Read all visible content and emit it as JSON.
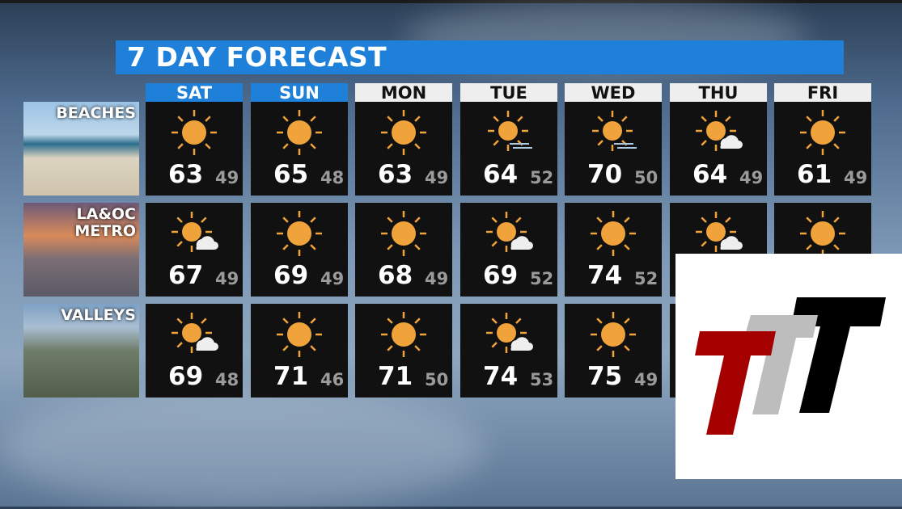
{
  "title": "7 DAY FORECAST",
  "colors": {
    "title_bar": "#1e80d8",
    "sun": "#f0a33a",
    "cell": "#111111"
  },
  "days": [
    {
      "label": "SAT",
      "current": true
    },
    {
      "label": "SUN",
      "current": true
    },
    {
      "label": "MON",
      "current": false
    },
    {
      "label": "TUE",
      "current": false
    },
    {
      "label": "WED",
      "current": false
    },
    {
      "label": "THU",
      "current": false
    },
    {
      "label": "FRI",
      "current": false
    }
  ],
  "regions": [
    {
      "label": "BEACHES",
      "forecast": [
        {
          "icon": "sunny",
          "hi": "63",
          "lo": "49"
        },
        {
          "icon": "sunny",
          "hi": "65",
          "lo": "48"
        },
        {
          "icon": "sunny",
          "hi": "63",
          "lo": "49"
        },
        {
          "icon": "sun-haze",
          "hi": "64",
          "lo": "52"
        },
        {
          "icon": "sun-haze",
          "hi": "70",
          "lo": "50"
        },
        {
          "icon": "sun-cloud",
          "hi": "64",
          "lo": "49"
        },
        {
          "icon": "sunny",
          "hi": "61",
          "lo": "49"
        }
      ]
    },
    {
      "label": "LA&OC\nMETRO",
      "forecast": [
        {
          "icon": "sun-cloud",
          "hi": "67",
          "lo": "49"
        },
        {
          "icon": "sunny",
          "hi": "69",
          "lo": "49"
        },
        {
          "icon": "sunny",
          "hi": "68",
          "lo": "49"
        },
        {
          "icon": "sun-cloud",
          "hi": "69",
          "lo": "52"
        },
        {
          "icon": "sunny",
          "hi": "74",
          "lo": "52"
        },
        {
          "icon": "sun-cloud"
        },
        {
          "icon": "sunny"
        }
      ]
    },
    {
      "label": "VALLEYS",
      "forecast": [
        {
          "icon": "sun-cloud",
          "hi": "69",
          "lo": "48"
        },
        {
          "icon": "sunny",
          "hi": "71",
          "lo": "46"
        },
        {
          "icon": "sunny",
          "hi": "71",
          "lo": "50"
        },
        {
          "icon": "sun-cloud",
          "hi": "74",
          "lo": "53"
        },
        {
          "icon": "sunny",
          "hi": "75",
          "lo": "49"
        },
        {},
        {}
      ]
    }
  ],
  "logo": {
    "text": "TTT",
    "colors": [
      "#a50000",
      "#bdbdbd",
      "#000000"
    ]
  }
}
